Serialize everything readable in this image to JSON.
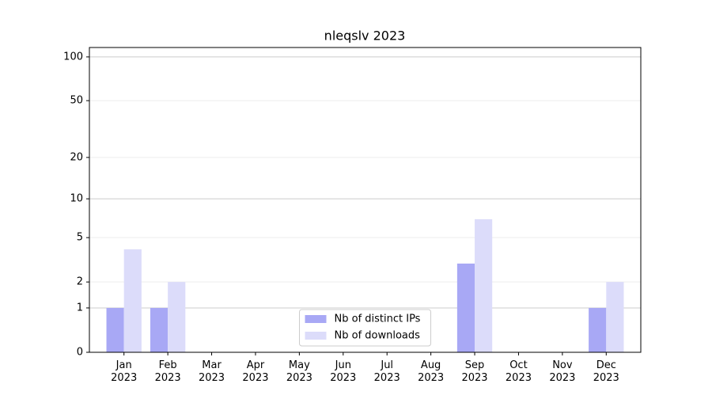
{
  "chart_data": {
    "type": "bar",
    "title": "nleqslv 2023",
    "categories": [
      "Jan 2023",
      "Feb 2023",
      "Mar 2023",
      "Apr 2023",
      "May 2023",
      "Jun 2023",
      "Jul 2023",
      "Aug 2023",
      "Sep 2023",
      "Oct 2023",
      "Nov 2023",
      "Dec 2023"
    ],
    "series": [
      {
        "name": "Nb of distinct IPs",
        "color": "#a8a8f5",
        "values": [
          1,
          1,
          0,
          0,
          0,
          0,
          0,
          0,
          3,
          0,
          0,
          1
        ]
      },
      {
        "name": "Nb of downloads",
        "color": "#dcdcfa",
        "values": [
          4,
          2,
          0,
          0,
          0,
          0,
          0,
          0,
          7,
          0,
          0,
          2
        ]
      }
    ],
    "yscale": "log1p",
    "ylim": [
      0,
      116
    ],
    "yticks": [
      0,
      1,
      2,
      5,
      10,
      20,
      50,
      100
    ],
    "grid": true,
    "legend": "lower center"
  }
}
